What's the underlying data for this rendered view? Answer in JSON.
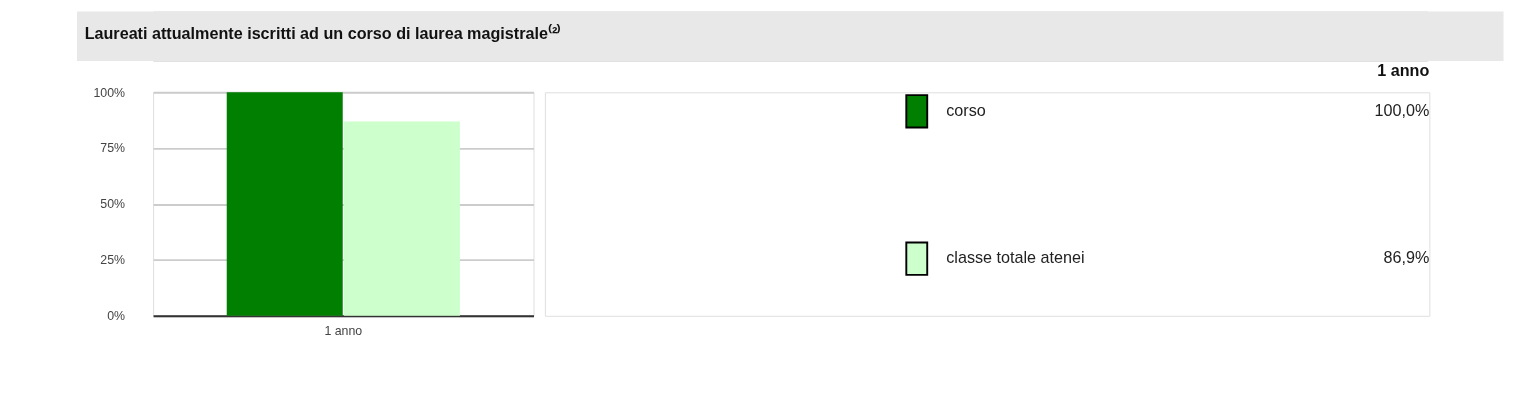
{
  "chart_data": {
    "type": "bar",
    "title": "Laureati attualmente iscritti ad un corso di laurea magistrale⁽²⁾",
    "categories": [
      "1 anno"
    ],
    "series": [
      {
        "name": "corso",
        "color": "#007f00",
        "values": [
          100.0
        ]
      },
      {
        "name": "classe totale atenei",
        "color": "#ccffcc",
        "values": [
          86.9
        ]
      }
    ],
    "annotations": [
      "100,0%",
      "86,9%"
    ],
    "ylim": [
      0,
      100
    ],
    "yticks": [
      {
        "value": 0,
        "label": "0%"
      },
      {
        "value": 25,
        "label": "25%"
      },
      {
        "value": 50,
        "label": "50%"
      },
      {
        "value": 75,
        "label": "75%"
      },
      {
        "value": 100,
        "label": "100%"
      }
    ],
    "grid": "y",
    "legend": "right"
  }
}
